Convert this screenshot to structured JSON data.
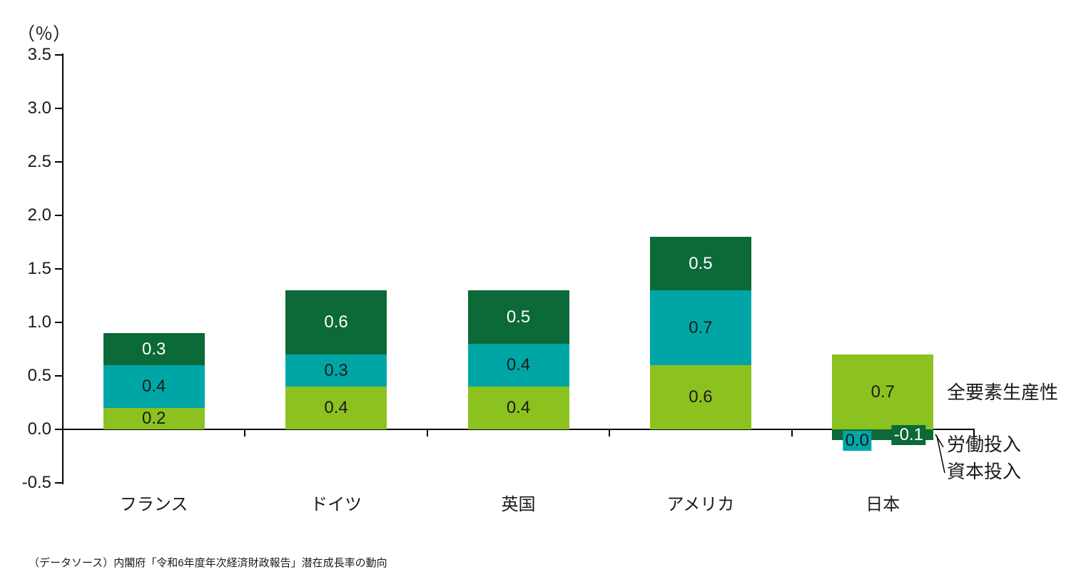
{
  "unit_label": "（％）",
  "footer": "（データソース）内閣府「令和6年度年次経済財政報告」潜在成長率の動向",
  "annotations": {
    "tfp": "全要素生産性",
    "labor": "労働投入",
    "capital": "資本投入"
  },
  "chart_data": {
    "type": "bar",
    "stacked": true,
    "title": "",
    "xlabel": "",
    "ylabel": "（％）",
    "categories": [
      "フランス",
      "ドイツ",
      "英国",
      "アメリカ",
      "日本"
    ],
    "series": [
      {
        "name": "全要素生産性",
        "color": "#8CC21F",
        "label_color": "#1a1a1a",
        "values": [
          0.2,
          0.4,
          0.4,
          0.6,
          0.7
        ]
      },
      {
        "name": "労働投入",
        "color": "#00A6A6",
        "label_color": "#1a1a1a",
        "values": [
          0.4,
          0.3,
          0.4,
          0.7,
          0.0
        ]
      },
      {
        "name": "資本投入",
        "color": "#0B6A37",
        "label_color": "#ffffff",
        "values": [
          0.3,
          0.6,
          0.5,
          0.5,
          -0.1
        ]
      }
    ],
    "totals": [
      0.9,
      1.3,
      1.3,
      1.8,
      0.6
    ],
    "y_axis": {
      "min": -0.5,
      "max": 3.5,
      "step": 0.5,
      "tick_labels": [
        "3.5",
        "3.0",
        "2.5",
        "2.0",
        "1.5",
        "1.0",
        "0.5",
        "0.0",
        "-0.5"
      ]
    },
    "grid": false,
    "legend_position": "right-annotations",
    "axis_color": "#000000"
  }
}
